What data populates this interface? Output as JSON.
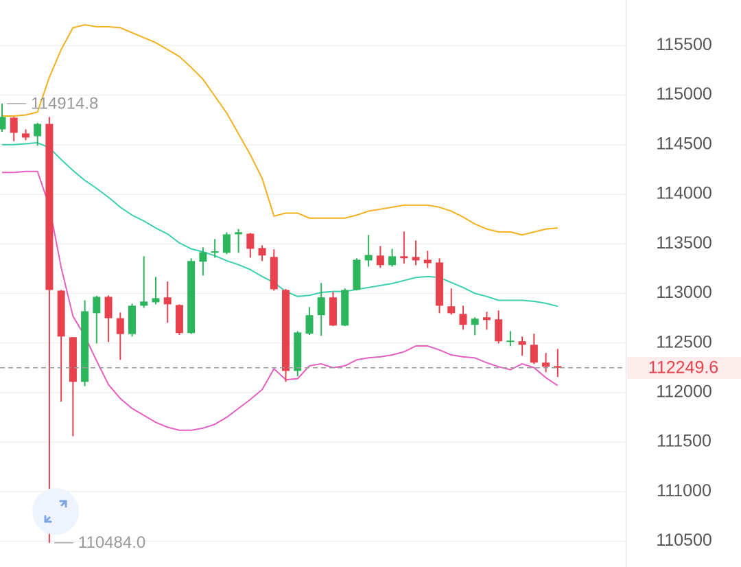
{
  "chart_data": {
    "type": "candlestick",
    "categories": [
      null,
      null,
      null,
      null,
      null,
      null,
      null,
      null,
      null,
      null,
      null,
      null,
      null,
      null,
      null,
      null,
      null,
      null,
      null,
      null,
      null,
      null,
      null,
      null,
      null,
      null,
      null,
      null,
      null,
      null,
      null,
      null,
      null,
      null,
      null,
      null,
      null,
      null,
      null,
      null,
      null,
      null,
      null,
      null,
      null,
      null,
      null,
      null
    ],
    "open": [
      114655,
      114773,
      114614,
      114586,
      114710,
      113028,
      112558,
      112108,
      112800,
      112966,
      112750,
      112590,
      112876,
      112910,
      112960,
      112883,
      112600,
      113320,
      113410,
      113410,
      113596,
      113603,
      113458,
      113368,
      113035,
      112218,
      112594,
      112780,
      112960,
      112676,
      113035,
      113333,
      113382,
      113285,
      113375,
      113368,
      113340,
      113312,
      112870,
      112793,
      112683,
      112759,
      112738,
      112510,
      112517,
      112482,
      112302,
      112267
    ],
    "high": [
      114914.8,
      114780,
      114655,
      114720,
      114780,
      113035,
      112560,
      112930,
      112975,
      112980,
      112807,
      112897,
      113375,
      113167,
      113120,
      112890,
      113354,
      113465,
      113548,
      113617,
      113650,
      113610,
      113485,
      113445,
      113045,
      112620,
      112862,
      113105,
      113015,
      113050,
      113354,
      113590,
      113478,
      113450,
      113624,
      113534,
      113430,
      113354,
      113050,
      112876,
      112759,
      112814,
      112828,
      112620,
      112565,
      112593,
      112400,
      112440
    ],
    "low": [
      114630,
      114535,
      114545,
      114490,
      110484,
      111907,
      111560,
      112065,
      112495,
      112510,
      112330,
      112565,
      112855,
      112890,
      112703,
      112580,
      112590,
      113180,
      113360,
      113395,
      113410,
      113360,
      113326,
      113028,
      112108,
      112163,
      112580,
      112572,
      112670,
      112670,
      113030,
      113270,
      113257,
      113270,
      113300,
      113285,
      113257,
      112800,
      112786,
      112634,
      112578,
      112634,
      112496,
      112468,
      112371,
      112288,
      112205,
      112156
    ],
    "close": [
      114780,
      114620,
      114572,
      114710,
      113035,
      112565,
      112108,
      112820,
      112966,
      112750,
      112590,
      112876,
      112918,
      112952,
      112890,
      112600,
      113327,
      113416,
      113425,
      113596,
      113617,
      113450,
      113382,
      113042,
      112218,
      112606,
      112780,
      112960,
      112676,
      113035,
      113340,
      113388,
      113285,
      113375,
      113354,
      113333,
      113305,
      112876,
      112800,
      112683,
      112745,
      112731,
      112517,
      112524,
      112482,
      112302,
      112260,
      112249.6
    ],
    "up_color": "#2db55d",
    "down_color": "#e8414e",
    "lines": [
      {
        "color": "#f2b01e",
        "values": [
          114790,
          114790,
          114800,
          114830,
          115180,
          115460,
          115680,
          115710,
          115690,
          115690,
          115680,
          115630,
          115580,
          115530,
          115460,
          115390,
          115280,
          115160,
          114990,
          114820,
          114610,
          114400,
          114160,
          113780,
          113810,
          113810,
          113760,
          113760,
          113760,
          113760,
          113790,
          113830,
          113850,
          113870,
          113890,
          113890,
          113890,
          113870,
          113830,
          113770,
          113700,
          113650,
          113620,
          113620,
          113590,
          113620,
          113650,
          113660
        ]
      },
      {
        "color": "#3ccfb0",
        "values": [
          114500,
          114500,
          114510,
          114520,
          114470,
          114350,
          114240,
          114140,
          114060,
          113970,
          113870,
          113790,
          113730,
          113660,
          113600,
          113510,
          113450,
          113420,
          113380,
          113330,
          113290,
          113240,
          113170,
          113110,
          113020,
          112970,
          112980,
          113010,
          113020,
          113020,
          113040,
          113060,
          113080,
          113100,
          113130,
          113160,
          113170,
          113160,
          113110,
          113060,
          113000,
          112970,
          112930,
          112930,
          112930,
          112920,
          112900,
          112870
        ]
      },
      {
        "color": "#e35fc0",
        "values": [
          114220,
          114220,
          114230,
          114230,
          113880,
          113260,
          112770,
          112570,
          112320,
          112080,
          111940,
          111840,
          111770,
          111700,
          111650,
          111620,
          111620,
          111640,
          111680,
          111750,
          111840,
          111930,
          112030,
          112240,
          112130,
          112140,
          112270,
          112290,
          112250,
          112270,
          112330,
          112350,
          112360,
          112380,
          112410,
          112470,
          112470,
          112430,
          112380,
          112360,
          112350,
          112300,
          112260,
          112230,
          112290,
          112250,
          112150,
          112070
        ]
      }
    ],
    "ylim": [
      110240,
      115960
    ],
    "yticks": [
      110500,
      111000,
      111500,
      112000,
      112500,
      113000,
      113500,
      114000,
      114500,
      115000,
      115500
    ],
    "grid": true,
    "annotations": [
      {
        "value": 114914.8,
        "label": "114914.8"
      },
      {
        "value": 110484,
        "label": "110484.0"
      }
    ],
    "last_price": 112249.6,
    "last_price_color": "#e8414e"
  }
}
